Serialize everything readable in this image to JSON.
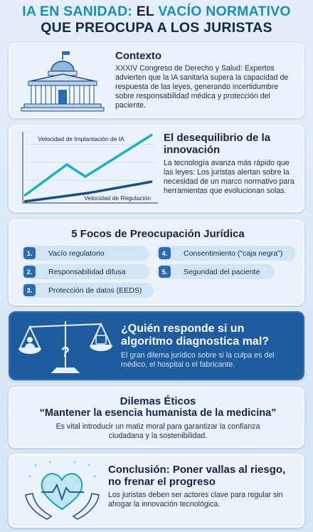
{
  "header": {
    "title_parts": [
      "IA EN SANIDAD:",
      "EL",
      "VACÍO NORMATIVO",
      "QUE PREOCUPA A LOS JURISTAS"
    ]
  },
  "context": {
    "title": "Contexto",
    "text": "XXXIV Congreso de Derecho y Salud: Expertos advierten que la IA sanitaria supera la capacidad de respuesta de las leyes, generando incertidumbre sobre responsabilidad médica y protección del paciente."
  },
  "imbalance": {
    "title": "El desequilibrio de la innovación",
    "text": "La tecnología avanza más rápido que las leyes: Los juristas alertan sobre la necesidad de un marco normativo para herramientas que evolucionan solas.",
    "chart_labels": [
      "Velocidad de Implantación de IA",
      "Velocidad de Regulación"
    ]
  },
  "concerns": {
    "title": "5 Focos de Preocupación Jurídica",
    "items": [
      {
        "number": "1.",
        "label": "Vacío regulatorio"
      },
      {
        "number": "2.",
        "label": "Responsabilidad difusa"
      },
      {
        "number": "3.",
        "label": "Protección de datos (EEDS)"
      },
      {
        "number": "4.",
        "label": "Consentimiento (\"caja negra\")"
      },
      {
        "number": "5.",
        "label": "Seguridad del paciente"
      }
    ]
  },
  "liability": {
    "title": "¿Quién responde si un algoritmo diagnostica mal?",
    "text": "El gran dilema jurídico sobre si la culpa es del médico, el hospital o el fabricante."
  },
  "ethics": {
    "title": "Dilemas Éticos",
    "quote": "“Mantener la esencia humanista de la medicina”",
    "text": "Es vital introducir un matiz moral para garantizar la confianza ciudadana y la sostenibilidad."
  },
  "conclusion": {
    "title": "Conclusión: Poner vallas al riesgo, no frenar el progreso",
    "text": "Los juristas deben ser actores clave para regular sin ahogar la innovación tecnológica."
  }
}
